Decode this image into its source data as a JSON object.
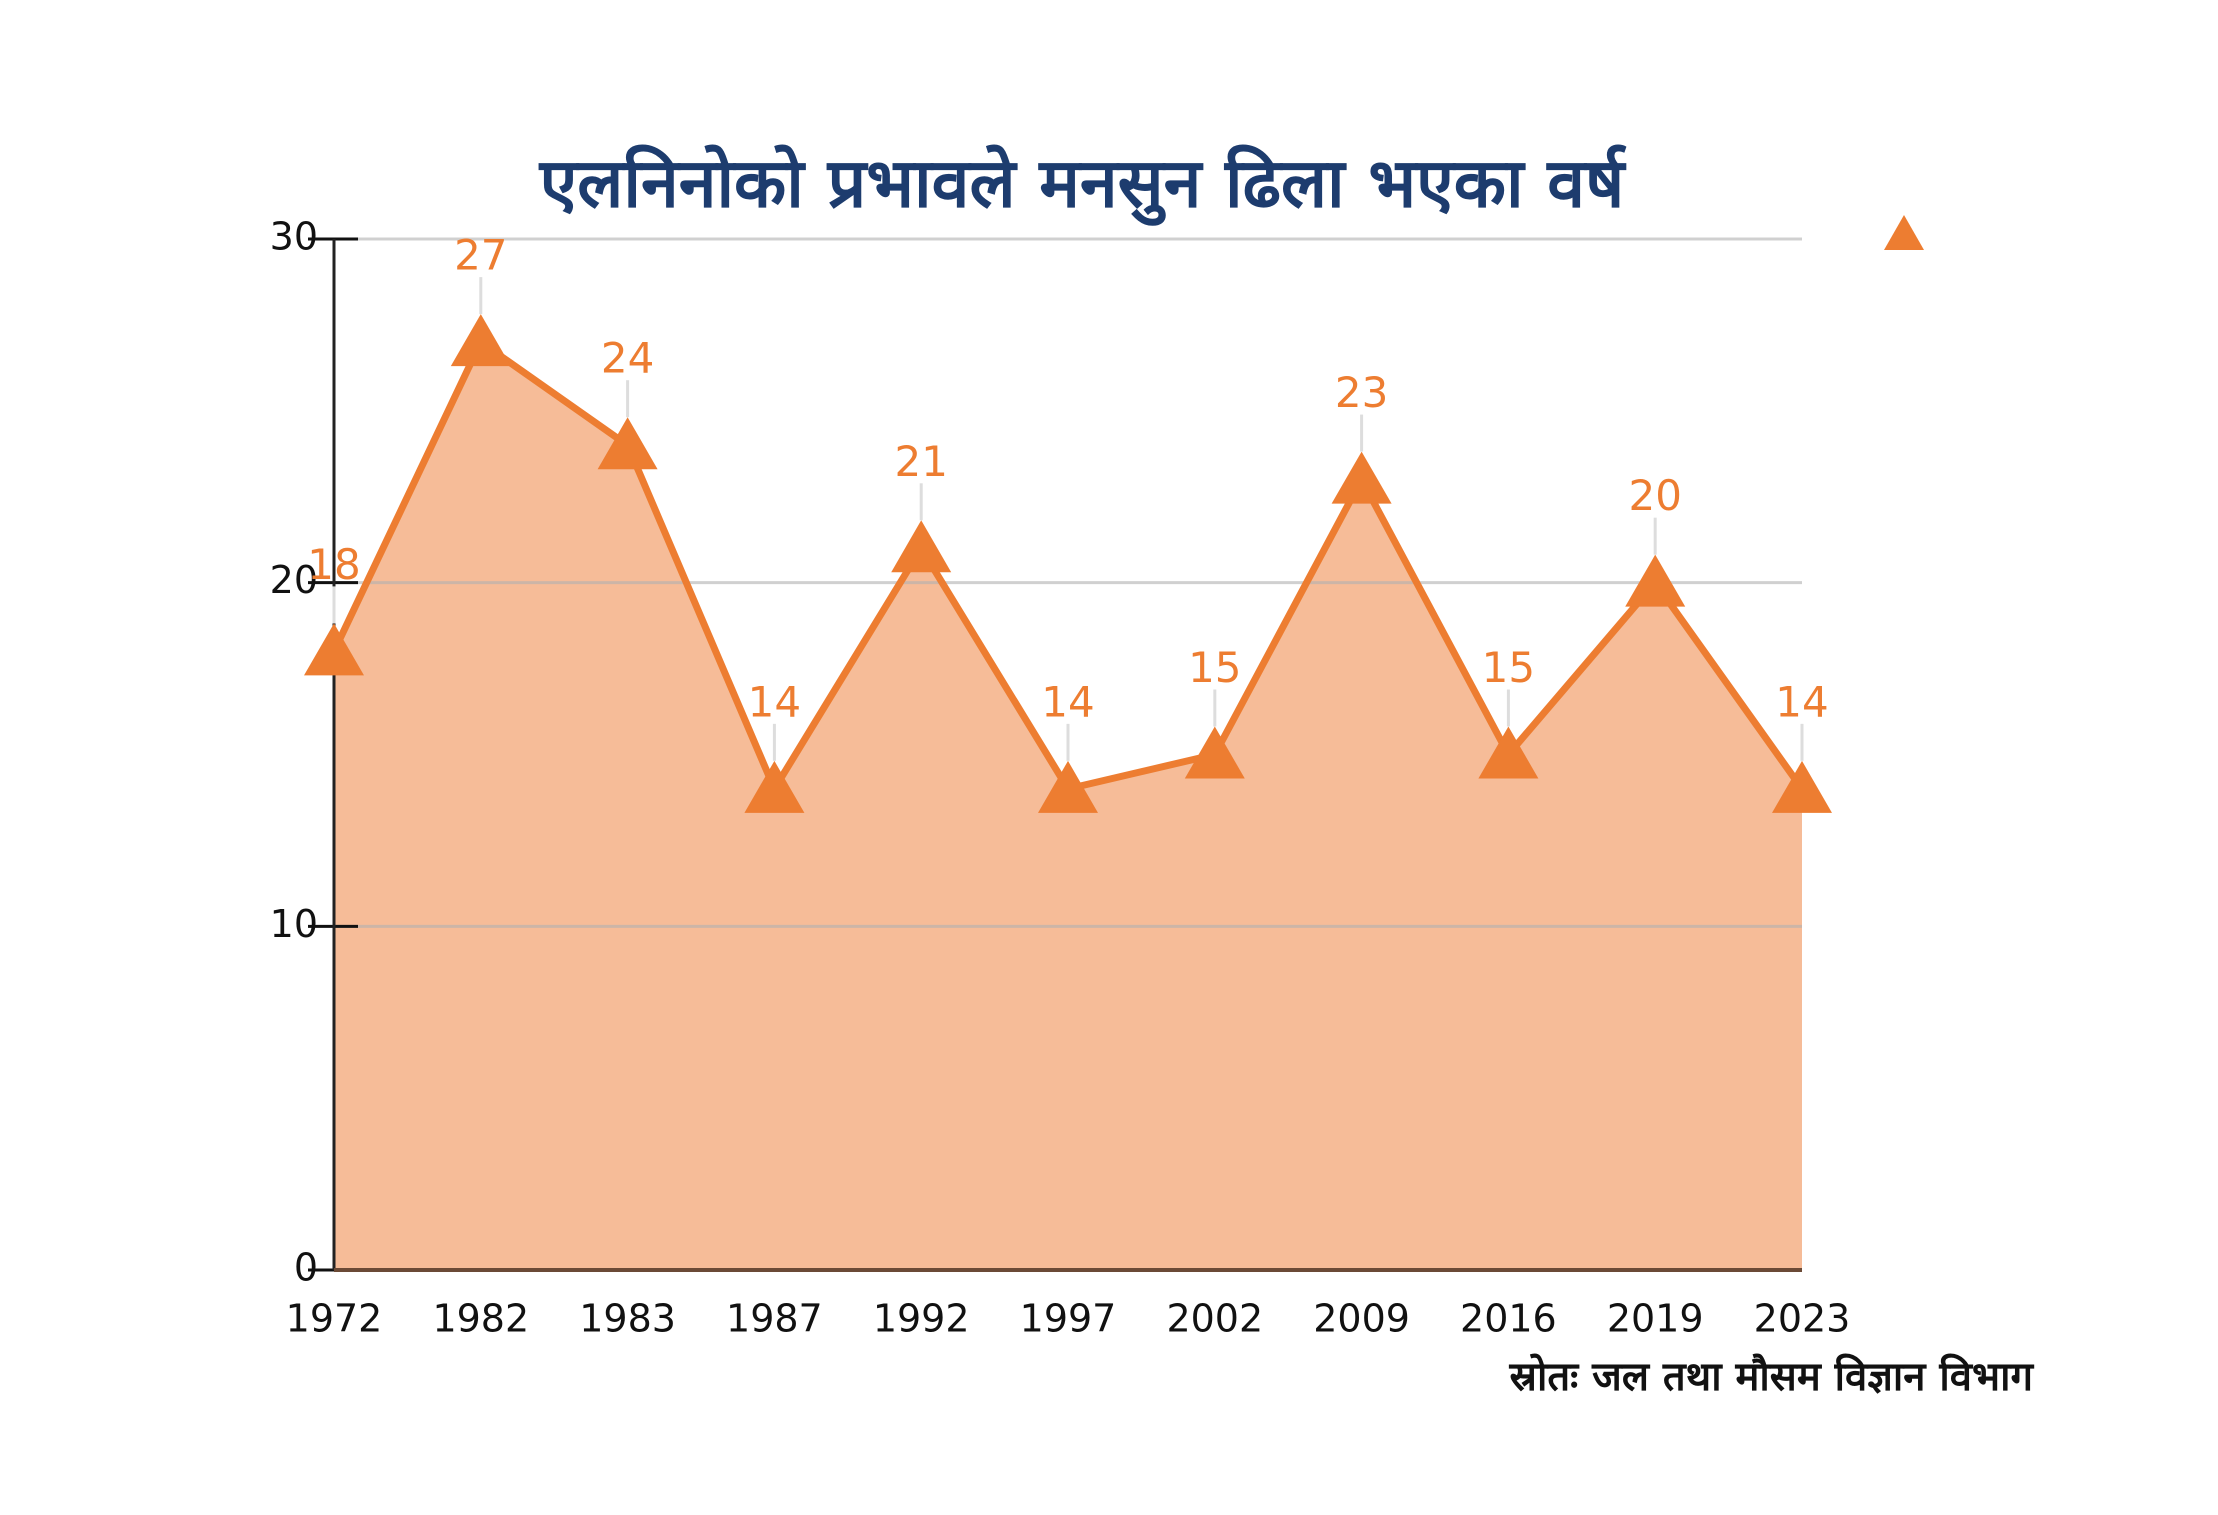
{
  "chart_data": {
    "type": "area",
    "title": "एलनिनोको प्रभावले मनसुन ढिला भएका वर्ष",
    "source": "स्रोतः जल तथा मौसम विज्ञान विभाग",
    "categories": [
      "1972",
      "1982",
      "1983",
      "1987",
      "1992",
      "1997",
      "2002",
      "2009",
      "2016",
      "2019",
      "2023"
    ],
    "values": [
      18,
      27,
      24,
      14,
      21,
      14,
      15,
      23,
      15,
      20,
      14
    ],
    "color": "#ed7d31",
    "fill_color": "#f6bc98",
    "ylim": [
      0,
      30
    ],
    "yticks": [
      0,
      10,
      20,
      30
    ],
    "grid": true
  }
}
